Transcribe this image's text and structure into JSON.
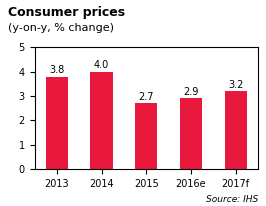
{
  "chart_data": {
    "type": "bar",
    "title": "Consumer prices",
    "subtitle": "(y-on-y, % change)",
    "categories": [
      "2013",
      "2014",
      "2015",
      "2016e",
      "2017f"
    ],
    "values": [
      3.8,
      4.0,
      2.7,
      2.9,
      3.2
    ],
    "value_labels": [
      "3.8",
      "4.0",
      "2.7",
      "2.9",
      "3.2"
    ],
    "data_labels": true,
    "color": "#e8193c",
    "ylim": [
      0,
      5
    ],
    "yticks": [
      0,
      1,
      2,
      3,
      4,
      5
    ],
    "annotation": "Source: IHS"
  }
}
